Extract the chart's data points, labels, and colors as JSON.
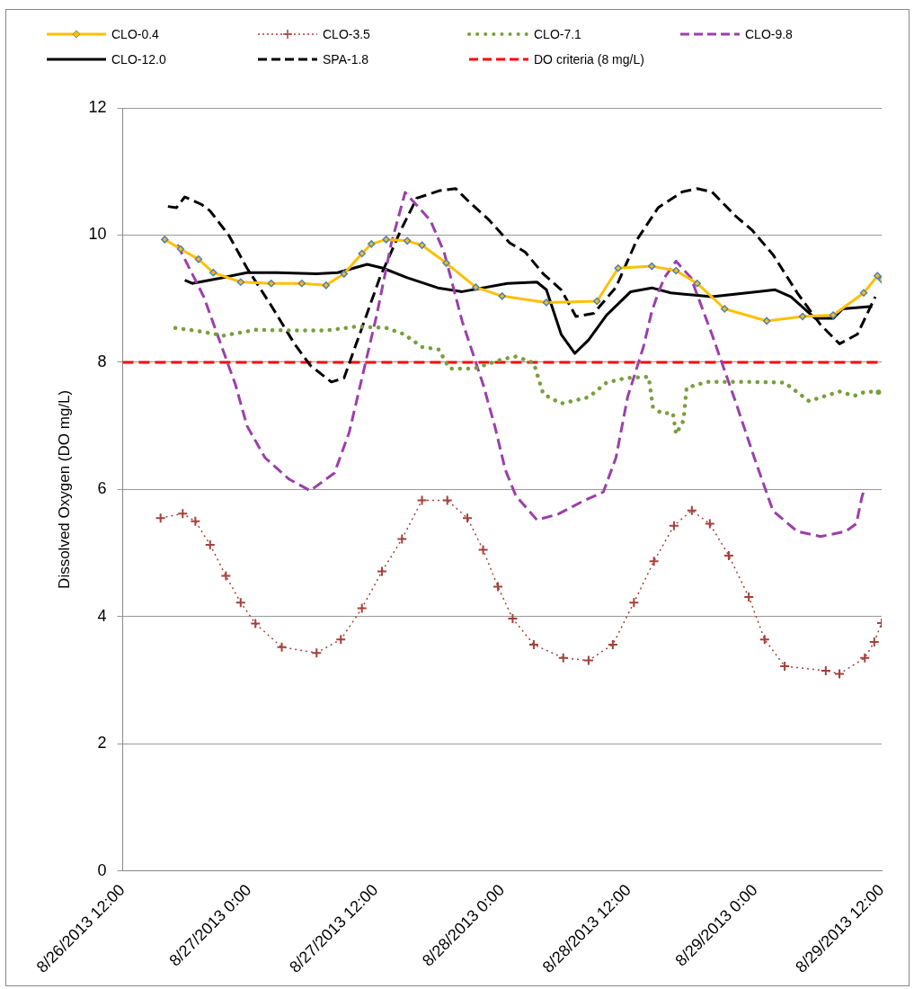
{
  "chart_data": {
    "type": "line",
    "ylabel": "Dissolved Oxygen (DO mg/L)",
    "ylim": [
      0,
      12
    ],
    "yticks": [
      0,
      2,
      4,
      6,
      8,
      10,
      12
    ],
    "xlim": [
      "2013-08-26T12:00",
      "2013-08-29T12:00"
    ],
    "xticks": [
      {
        "value": "2013-08-26T12:00",
        "label": "8/26/2013 12:00"
      },
      {
        "value": "2013-08-27T00:00",
        "label": "8/27/2013 0:00"
      },
      {
        "value": "2013-08-27T12:00",
        "label": "8/27/2013 12:00"
      },
      {
        "value": "2013-08-28T00:00",
        "label": "8/28/2013 0:00"
      },
      {
        "value": "2013-08-28T12:00",
        "label": "8/28/2013 12:00"
      },
      {
        "value": "2013-08-29T00:00",
        "label": "8/29/2013 0:00"
      },
      {
        "value": "2013-08-29T12:00",
        "label": "8/29/2013 12:00"
      }
    ],
    "grid": "y",
    "legend": "top",
    "series": [
      {
        "name": "CLO-0.4",
        "color": "#ffc000",
        "marker": "diamond",
        "line_style": "solid",
        "x": [
          "2013-08-26T16:00",
          "2013-08-26T17:30",
          "2013-08-26T19:12",
          "2013-08-26T20:36",
          "2013-08-26T23:12",
          "2013-08-27T02:06",
          "2013-08-27T05:00",
          "2013-08-27T07:18",
          "2013-08-27T09:00",
          "2013-08-27T10:42",
          "2013-08-27T11:36",
          "2013-08-27T13:00",
          "2013-08-27T15:00",
          "2013-08-27T16:24",
          "2013-08-27T18:42",
          "2013-08-27T21:30",
          "2013-08-28T00:00",
          "2013-08-28T04:12",
          "2013-08-28T09:00",
          "2013-08-28T11:00",
          "2013-08-28T14:12",
          "2013-08-28T16:30",
          "2013-08-28T18:30",
          "2013-08-28T21:06",
          "2013-08-29T01:06",
          "2013-08-29T04:30",
          "2013-08-29T07:24",
          "2013-08-29T10:18",
          "2013-08-29T11:36",
          "2013-08-29T12:00"
        ],
        "values": [
          9.93,
          9.78,
          9.62,
          9.41,
          9.26,
          9.24,
          9.24,
          9.21,
          9.39,
          9.71,
          9.86,
          9.93,
          9.91,
          9.84,
          9.56,
          9.18,
          9.04,
          8.94,
          8.96,
          9.48,
          9.51,
          9.44,
          9.24,
          8.84,
          8.65,
          8.72,
          8.74,
          9.09,
          9.36,
          9.3
        ]
      },
      {
        "name": "CLO-3.5",
        "color": "#a5403a",
        "marker": "cross",
        "line_style": "dotted",
        "x": [
          "2013-08-26T15:36",
          "2013-08-26T17:42",
          "2013-08-26T18:54",
          "2013-08-26T20:18",
          "2013-08-26T21:48",
          "2013-08-26T23:12",
          "2013-08-27T00:36",
          "2013-08-27T03:06",
          "2013-08-27T06:24",
          "2013-08-27T08:42",
          "2013-08-27T10:42",
          "2013-08-27T12:36",
          "2013-08-27T14:30",
          "2013-08-27T16:24",
          "2013-08-27T18:48",
          "2013-08-27T20:42",
          "2013-08-27T22:12",
          "2013-08-27T23:36",
          "2013-08-28T01:00",
          "2013-08-28T03:00",
          "2013-08-28T05:48",
          "2013-08-28T08:12",
          "2013-08-28T10:30",
          "2013-08-28T12:30",
          "2013-08-28T14:24",
          "2013-08-28T16:18",
          "2013-08-28T18:00",
          "2013-08-28T19:42",
          "2013-08-28T21:30",
          "2013-08-28T23:24",
          "2013-08-29T00:54",
          "2013-08-29T02:48",
          "2013-08-29T06:42",
          "2013-08-29T08:00",
          "2013-08-29T10:24",
          "2013-08-29T11:18",
          "2013-08-29T12:00"
        ],
        "values": [
          5.55,
          5.62,
          5.5,
          5.13,
          4.64,
          4.22,
          3.89,
          3.52,
          3.43,
          3.64,
          4.13,
          4.71,
          5.22,
          5.83,
          5.83,
          5.55,
          5.05,
          4.47,
          3.97,
          3.56,
          3.35,
          3.31,
          3.56,
          4.22,
          4.87,
          5.43,
          5.67,
          5.46,
          4.96,
          4.31,
          3.64,
          3.22,
          3.15,
          3.1,
          3.35,
          3.6,
          3.9
        ]
      },
      {
        "name": "CLO-7.1",
        "color": "#77a03c",
        "marker": "none",
        "line_style": "dotted",
        "x": [
          "2013-08-26T17:00",
          "2013-08-26T18:48",
          "2013-08-26T21:36",
          "2013-08-27T00:36",
          "2013-08-27T04:18",
          "2013-08-27T07:18",
          "2013-08-27T10:06",
          "2013-08-27T13:00",
          "2013-08-27T14:42",
          "2013-08-27T16:24",
          "2013-08-27T18:00",
          "2013-08-27T19:00",
          "2013-08-27T21:18",
          "2013-08-28T00:06",
          "2013-08-28T01:18",
          "2013-08-28T03:00",
          "2013-08-28T03:54",
          "2013-08-28T05:36",
          "2013-08-28T08:12",
          "2013-08-28T09:54",
          "2013-08-28T11:42",
          "2013-08-28T13:54",
          "2013-08-28T14:18",
          "2013-08-28T15:06",
          "2013-08-28T16:12",
          "2013-08-28T16:30",
          "2013-08-28T17:12",
          "2013-08-28T17:30",
          "2013-08-28T19:24",
          "2013-08-29T00:00",
          "2013-08-29T02:48",
          "2013-08-29T05:06",
          "2013-08-29T08:00",
          "2013-08-29T09:24",
          "2013-08-29T10:30",
          "2013-08-29T11:42"
        ],
        "values": [
          8.54,
          8.5,
          8.42,
          8.51,
          8.5,
          8.5,
          8.56,
          8.54,
          8.44,
          8.24,
          8.2,
          7.9,
          7.9,
          8.05,
          8.09,
          7.99,
          7.5,
          7.35,
          7.45,
          7.68,
          7.75,
          7.77,
          7.3,
          7.2,
          7.2,
          6.87,
          7.08,
          7.6,
          7.69,
          7.69,
          7.68,
          7.39,
          7.54,
          7.47,
          7.54,
          7.53
        ]
      },
      {
        "name": "CLO-9.8",
        "color": "#9b3fab",
        "marker": "none",
        "line_style": "dashed",
        "x": [
          "2013-08-26T17:12",
          "2013-08-26T19:42",
          "2013-08-26T21:30",
          "2013-08-26T22:42",
          "2013-08-26T23:48",
          "2013-08-27T01:30",
          "2013-08-27T03:48",
          "2013-08-27T05:48",
          "2013-08-27T08:06",
          "2013-08-27T09:30",
          "2013-08-27T10:42",
          "2013-08-27T12:06",
          "2013-08-27T13:30",
          "2013-08-27T14:48",
          "2013-08-27T17:12",
          "2013-08-27T18:30",
          "2013-08-27T20:12",
          "2013-08-27T22:12",
          "2013-08-27T23:18",
          "2013-08-28T00:18",
          "2013-08-28T01:18",
          "2013-08-28T03:18",
          "2013-08-28T05:18",
          "2013-08-28T07:36",
          "2013-08-28T09:36",
          "2013-08-28T10:48",
          "2013-08-28T11:54",
          "2013-08-28T13:24",
          "2013-08-28T14:12",
          "2013-08-28T14:48",
          "2013-08-28T15:24",
          "2013-08-28T16:30",
          "2013-08-28T17:54",
          "2013-08-28T19:54",
          "2013-08-28T22:12",
          "2013-08-29T00:00",
          "2013-08-29T01:42",
          "2013-08-29T04:00",
          "2013-08-29T06:12",
          "2013-08-29T08:36",
          "2013-08-29T09:36",
          "2013-08-29T10:06",
          "2013-08-29T10:18"
        ],
        "values": [
          9.85,
          9.03,
          8.2,
          7.65,
          7.0,
          6.5,
          6.16,
          5.98,
          6.26,
          6.9,
          7.75,
          8.74,
          9.88,
          10.67,
          10.23,
          9.73,
          8.65,
          7.65,
          7.0,
          6.31,
          5.9,
          5.52,
          5.61,
          5.81,
          5.96,
          6.5,
          7.45,
          8.24,
          8.8,
          9.09,
          9.33,
          9.59,
          9.33,
          8.44,
          7.35,
          6.46,
          5.66,
          5.34,
          5.26,
          5.34,
          5.46,
          5.86,
          5.98
        ]
      },
      {
        "name": "CLO-12.0",
        "color": "#000000",
        "marker": "none",
        "line_style": "solid",
        "x": [
          "2013-08-26T17:54",
          "2013-08-26T18:36",
          "2013-08-26T21:12",
          "2013-08-26T23:48",
          "2013-08-27T02:36",
          "2013-08-27T06:24",
          "2013-08-27T08:24",
          "2013-08-27T11:12",
          "2013-08-27T12:42",
          "2013-08-27T15:00",
          "2013-08-27T17:54",
          "2013-08-27T20:12",
          "2013-08-28T00:30",
          "2013-08-28T03:18",
          "2013-08-28T04:12",
          "2013-08-28T05:36",
          "2013-08-28T06:54",
          "2013-08-28T08:12",
          "2013-08-28T09:54",
          "2013-08-28T12:12",
          "2013-08-28T14:12",
          "2013-08-28T16:00",
          "2013-08-28T19:54",
          "2013-08-29T00:12",
          "2013-08-29T01:54",
          "2013-08-29T03:24",
          "2013-08-29T05:42",
          "2013-08-29T07:24",
          "2013-08-29T08:18",
          "2013-08-29T11:06"
        ],
        "values": [
          9.29,
          9.24,
          9.32,
          9.41,
          9.41,
          9.39,
          9.41,
          9.54,
          9.48,
          9.33,
          9.17,
          9.11,
          9.24,
          9.26,
          9.14,
          8.44,
          8.14,
          8.35,
          8.74,
          9.11,
          9.17,
          9.09,
          9.03,
          9.11,
          9.14,
          9.03,
          8.69,
          8.69,
          8.84,
          8.88
        ]
      },
      {
        "name": "SPA-1.8",
        "color": "#000000",
        "marker": "none",
        "line_style": "dashed",
        "x": [
          "2013-08-26T16:18",
          "2013-08-26T17:06",
          "2013-08-26T17:54",
          "2013-08-26T19:30",
          "2013-08-26T20:18",
          "2013-08-26T22:06",
          "2013-08-26T23:48",
          "2013-08-27T02:06",
          "2013-08-27T04:18",
          "2013-08-27T05:48",
          "2013-08-27T07:48",
          "2013-08-27T09:00",
          "2013-08-27T10:42",
          "2013-08-27T12:24",
          "2013-08-27T14:24",
          "2013-08-27T15:54",
          "2013-08-27T18:06",
          "2013-08-27T19:36",
          "2013-08-27T20:42",
          "2013-08-27T22:48",
          "2013-08-28T00:42",
          "2013-08-28T02:12",
          "2013-08-28T03:54",
          "2013-08-28T05:36",
          "2013-08-28T07:00",
          "2013-08-28T08:42",
          "2013-08-28T10:48",
          "2013-08-28T12:48",
          "2013-08-28T14:48",
          "2013-08-28T17:06",
          "2013-08-28T18:30",
          "2013-08-28T19:54",
          "2013-08-28T22:12",
          "2013-08-28T23:42",
          "2013-08-29T01:42",
          "2013-08-29T04:00",
          "2013-08-29T06:12",
          "2013-08-29T08:00",
          "2013-08-29T09:42",
          "2013-08-29T11:24"
        ],
        "values": [
          10.45,
          10.43,
          10.6,
          10.48,
          10.38,
          9.99,
          9.48,
          8.89,
          8.29,
          7.95,
          7.69,
          7.75,
          8.54,
          9.33,
          10.08,
          10.58,
          10.7,
          10.73,
          10.55,
          10.23,
          9.88,
          9.73,
          9.39,
          9.14,
          8.72,
          8.77,
          9.18,
          9.93,
          10.43,
          10.68,
          10.73,
          10.68,
          10.29,
          10.08,
          9.69,
          9.09,
          8.59,
          8.29,
          8.44,
          9.03
        ]
      }
    ],
    "ref_lines": [
      {
        "axis": "y",
        "value": 8,
        "label": "DO criteria (8 mg/L)",
        "color": "#ff0000",
        "line_style": "dashed"
      }
    ]
  }
}
